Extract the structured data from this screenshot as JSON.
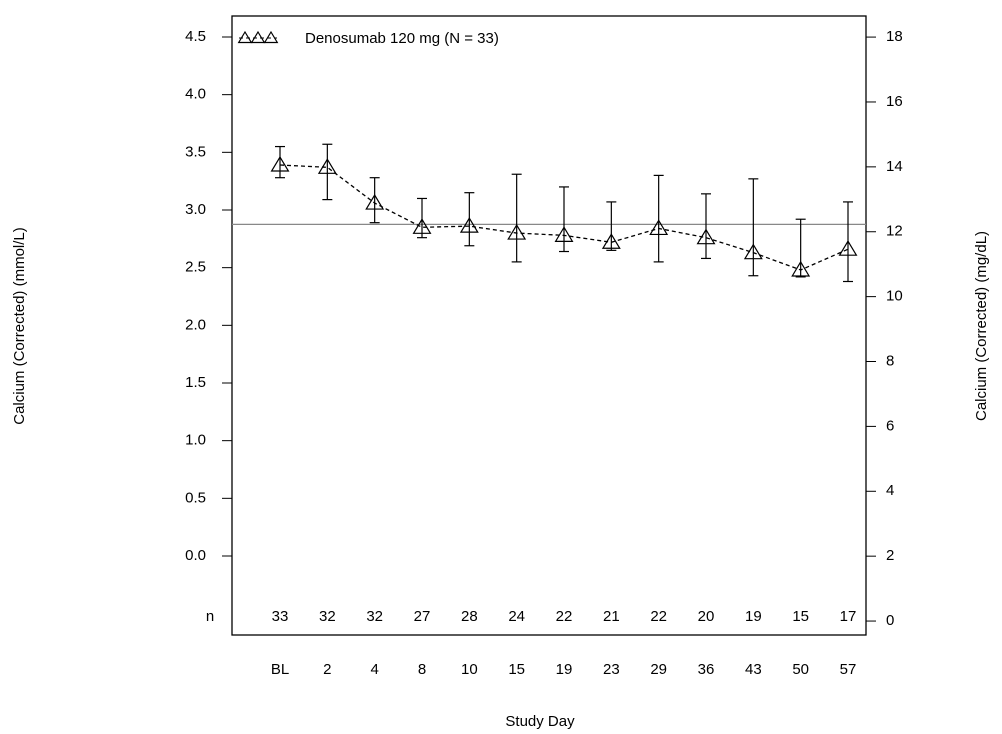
{
  "chart_data": {
    "type": "line",
    "categories": [
      "BL",
      "2",
      "4",
      "8",
      "10",
      "15",
      "19",
      "23",
      "29",
      "36",
      "43",
      "50",
      "57"
    ],
    "series": [
      {
        "name": "Denosumab 120 mg (N = 33)",
        "color": "#000000",
        "values": [
          3.39,
          3.37,
          3.06,
          2.85,
          2.86,
          2.8,
          2.78,
          2.72,
          2.84,
          2.76,
          2.63,
          2.48,
          2.66
        ],
        "upper": [
          3.55,
          3.57,
          3.28,
          3.1,
          3.15,
          3.31,
          3.2,
          3.07,
          3.3,
          3.14,
          3.27,
          2.92,
          3.07
        ],
        "lower": [
          3.28,
          3.09,
          2.89,
          2.76,
          2.69,
          2.55,
          2.64,
          2.65,
          2.55,
          2.58,
          2.43,
          2.42,
          2.38
        ]
      }
    ],
    "n_label": "n",
    "n_values": [
      33,
      32,
      32,
      27,
      28,
      24,
      22,
      21,
      22,
      20,
      19,
      15,
      17
    ],
    "reference_line": 2.875,
    "x_label": "Study Day",
    "y_label": "Calcium (Corrected) (mmol/L)",
    "y2_label": "Calcium (Corrected)  (mg/dL)",
    "ylim": [
      -0.685,
      4.682
    ],
    "yticks": [
      {
        "value": 0,
        "label": "0.0"
      },
      0.5,
      {
        "value": 1,
        "label": "1.0"
      },
      1.5,
      {
        "value": 2,
        "label": "2.0"
      },
      2.5,
      {
        "value": 3,
        "label": "3.0"
      },
      3.5,
      {
        "value": 4,
        "label": "4.0"
      },
      4.5
    ],
    "y2lim": [
      -0.43,
      18.65
    ],
    "y2ticks": [
      0,
      2,
      4,
      6,
      8,
      10,
      12,
      14,
      16,
      18
    ]
  }
}
